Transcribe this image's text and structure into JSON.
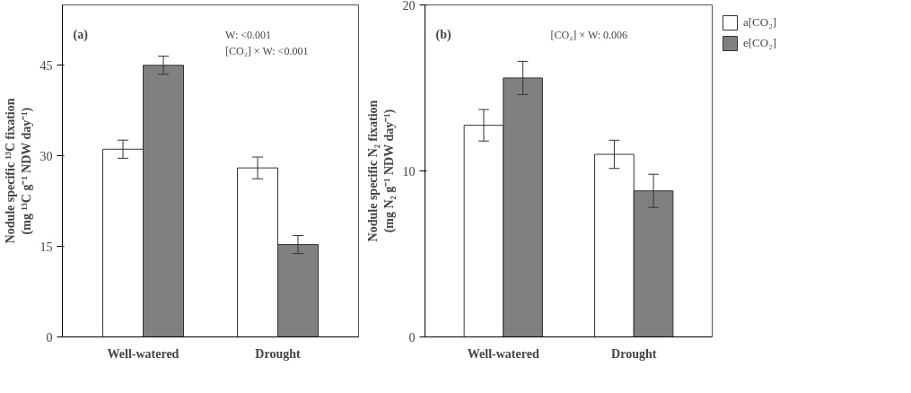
{
  "chart_data": [
    {
      "type": "bar",
      "title": "(a)",
      "ylabel": "Nodule specific ¹³C fixation\n(mg ¹³C g⁻¹ NDW day⁻¹)",
      "categories": [
        "Well-watered",
        "Drought"
      ],
      "series": [
        {
          "color": "#ffffff",
          "values": [
            31.1,
            28.0
          ],
          "errors": [
            1.5,
            1.8
          ]
        },
        {
          "color": "#808080",
          "values": [
            45.0,
            15.3
          ],
          "errors": [
            1.5,
            1.5
          ]
        }
      ],
      "ylim": [
        0,
        55
      ],
      "yticks": [
        0,
        15,
        30,
        45
      ],
      "grid": false,
      "annotations": [
        "W: <0.001",
        "[CO₂] × W: <0.001"
      ]
    },
    {
      "type": "bar",
      "title": "(b)",
      "ylabel": "Nodule specific N₂ fixation\n(mg N₂ g⁻¹ NDW day⁻¹)",
      "categories": [
        "Well-watered",
        "Drought"
      ],
      "series": [
        {
          "name": "a[CO₂]",
          "color": "#ffffff",
          "values": [
            12.75,
            11.0
          ],
          "errors": [
            0.95,
            0.85
          ]
        },
        {
          "name": "e[CO₂]",
          "color": "#808080",
          "values": [
            15.6,
            8.8
          ],
          "errors": [
            1.0,
            1.0
          ]
        }
      ],
      "ylim": [
        0,
        20
      ],
      "yticks": [
        0,
        10,
        20
      ],
      "grid": false,
      "legend": "right",
      "annotations": [
        "[CO₂] × W: 0.006"
      ]
    }
  ]
}
